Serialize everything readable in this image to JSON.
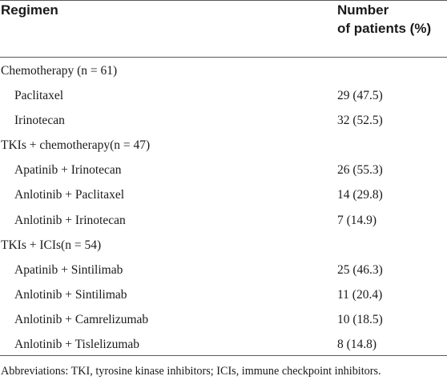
{
  "table": {
    "headers": {
      "regimen": "Regimen",
      "number_line1": "Number",
      "number_line2": "of patients (%)"
    },
    "rows": [
      {
        "kind": "group",
        "label": "Chemotherapy (n = 61)",
        "value": ""
      },
      {
        "kind": "item",
        "label": "Paclitaxel",
        "value": "29 (47.5)"
      },
      {
        "kind": "item",
        "label": "Irinotecan",
        "value": "32 (52.5)"
      },
      {
        "kind": "group",
        "label": "TKIs + chemotherapy(n = 47)",
        "value": ""
      },
      {
        "kind": "item",
        "label": "Apatinib + Irinotecan",
        "value": "26 (55.3)"
      },
      {
        "kind": "item",
        "label": "Anlotinib + Paclitaxel",
        "value": "14 (29.8)"
      },
      {
        "kind": "item",
        "label": "Anlotinib + Irinotecan",
        "value": "7 (14.9)"
      },
      {
        "kind": "group",
        "label": "TKIs + ICIs(n = 54)",
        "value": ""
      },
      {
        "kind": "item",
        "label": "Apatinib + Sintilimab",
        "value": "25 (46.3)"
      },
      {
        "kind": "item",
        "label": "Anlotinib + Sintilimab",
        "value": "11 (20.4)"
      },
      {
        "kind": "item",
        "label": "Anlotinib + Camrelizumab",
        "value": "10 (18.5)"
      },
      {
        "kind": "item",
        "label": "Anlotinib + Tislelizumab",
        "value": "8 (14.8)"
      }
    ],
    "footnote": "Abbreviations: TKI, tyrosine kinase inhibitors; ICIs, immune checkpoint inhibitors."
  }
}
